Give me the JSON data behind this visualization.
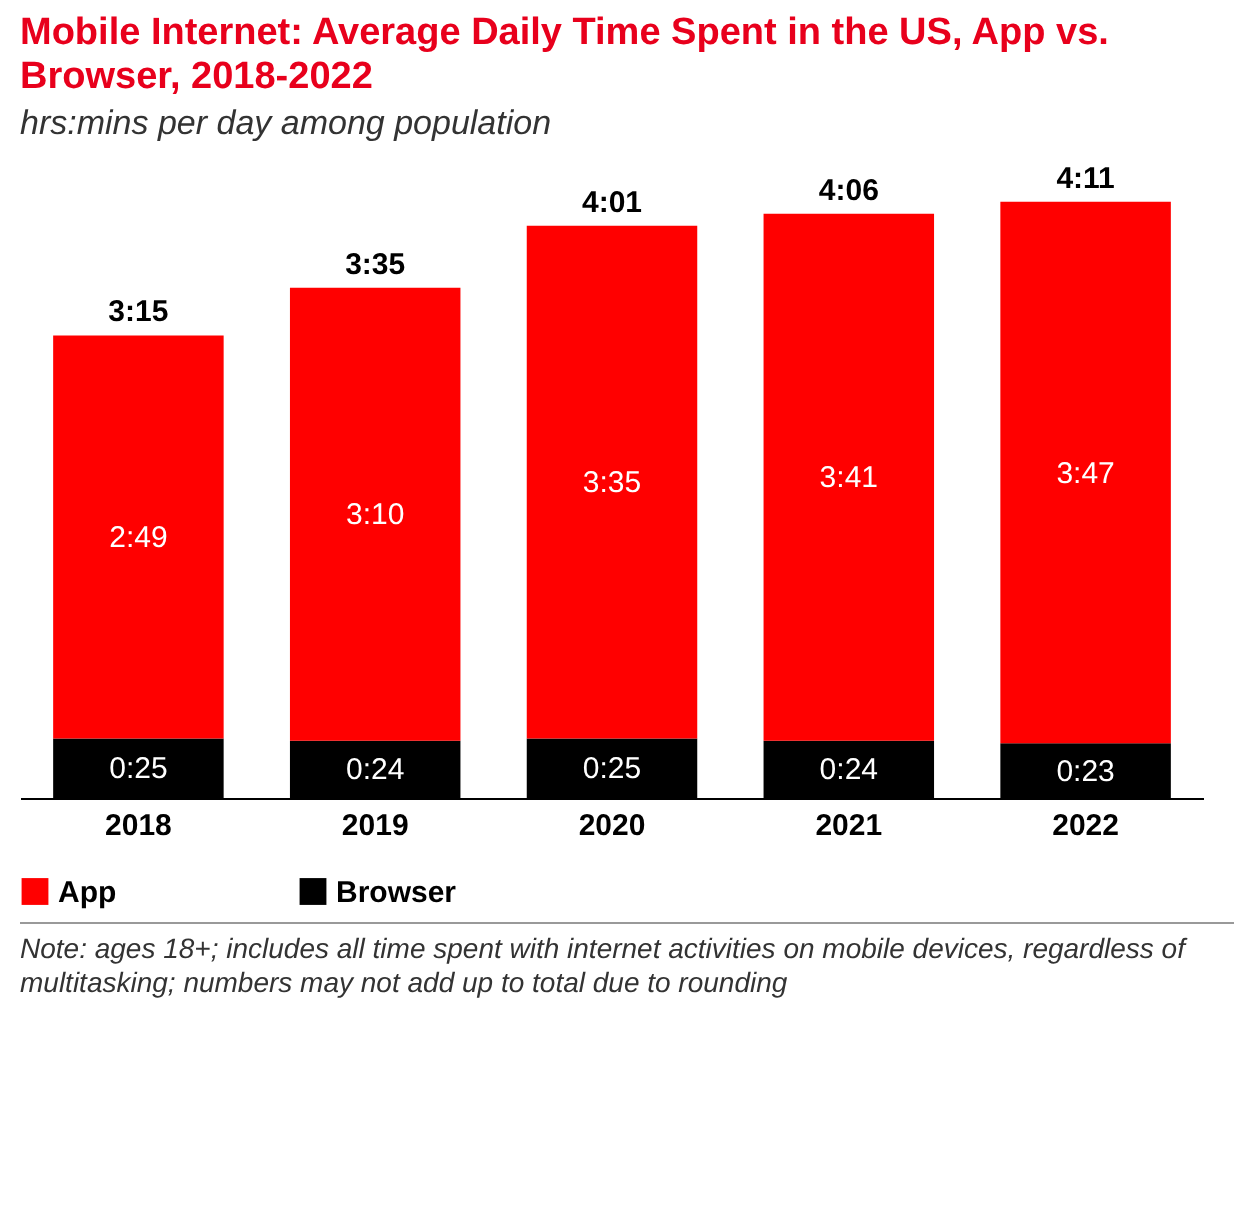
{
  "chart_data": {
    "type": "bar",
    "title": "Mobile Internet: Average Daily Time Spent in the US, App vs. Browser, 2018-2022",
    "subtitle": "hrs:mins per day among population",
    "categories": [
      "2018",
      "2019",
      "2020",
      "2021",
      "2022"
    ],
    "stacked": true,
    "series": [
      {
        "name": "Browser",
        "color": "#000000",
        "values": [
          25,
          24,
          25,
          24,
          23
        ],
        "value_labels": [
          "0:25",
          "0:24",
          "0:25",
          "0:24",
          "0:23"
        ]
      },
      {
        "name": "App",
        "color": "#ff0000",
        "values": [
          169,
          190,
          215,
          221,
          227
        ],
        "value_labels": [
          "2:49",
          "3:10",
          "3:35",
          "3:41",
          "3:47"
        ]
      }
    ],
    "totals": [
      "3:15",
      "3:35",
      "4:01",
      "4:06",
      "4:11"
    ],
    "legend": "bottom left",
    "annotations": [
      "Note: ages 18+; includes all time spent with internet activities on mobile devices, regardless of multitasking; numbers may not add up to total due to rounding"
    ]
  }
}
